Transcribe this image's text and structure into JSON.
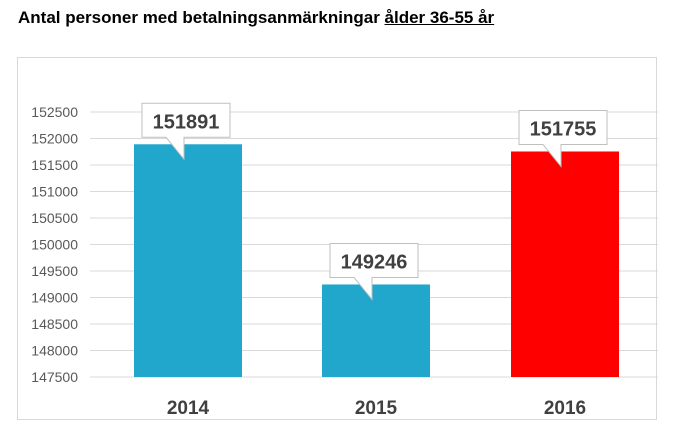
{
  "title_main": "Antal personer med betalningsanmärkningar ",
  "title_underlined": "ålder 36-55 år",
  "chart_data": {
    "type": "bar",
    "title": "Antal personer med betalningsanmärkningar ålder 36-55 år",
    "xlabel": "",
    "ylabel": "",
    "categories": [
      "2014",
      "2015",
      "2016"
    ],
    "values": [
      151891,
      149246,
      151755
    ],
    "data_labels": [
      "151891",
      "149246",
      "151755"
    ],
    "bar_colors": [
      "#21a6cc",
      "#21a6cc",
      "#ff0000"
    ],
    "ylim": [
      147500,
      152500
    ],
    "yticks": [
      "147500",
      "148000",
      "148500",
      "149000",
      "149500",
      "150000",
      "150500",
      "151000",
      "151500",
      "152000",
      "152500"
    ],
    "grid": true,
    "legend": "none"
  }
}
